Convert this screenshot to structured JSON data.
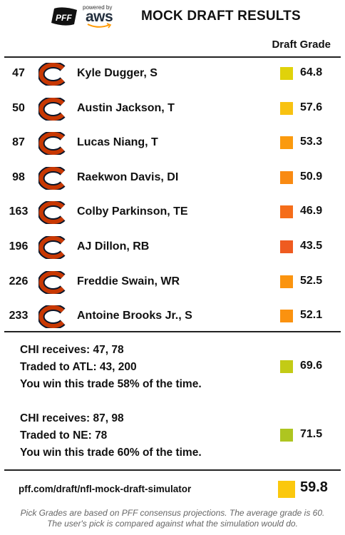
{
  "header": {
    "pff_logo_text": "PFF",
    "aws_powered_by": "powered by",
    "aws_text": "aws",
    "title": "MOCK DRAFT RESULTS"
  },
  "column_header": "Draft Grade",
  "team_logo_icon": "chicago-bears-c-icon",
  "colors": {
    "logo_navy": "#0b162a",
    "logo_orange": "#c83803"
  },
  "picks": [
    {
      "pick": "47",
      "player": "Kyle Dugger, S",
      "grade": "64.8",
      "color": "#e0d20a"
    },
    {
      "pick": "50",
      "player": "Austin Jackson, T",
      "grade": "57.6",
      "color": "#f8c211"
    },
    {
      "pick": "87",
      "player": "Lucas Niang, T",
      "grade": "53.3",
      "color": "#fb9a0e"
    },
    {
      "pick": "98",
      "player": "Raekwon Davis, DI",
      "grade": "50.9",
      "color": "#f98a12"
    },
    {
      "pick": "163",
      "player": "Colby Parkinson, TE",
      "grade": "46.9",
      "color": "#f56d1a"
    },
    {
      "pick": "196",
      "player": "AJ Dillon, RB",
      "grade": "43.5",
      "color": "#ef5b20"
    },
    {
      "pick": "226",
      "player": "Freddie Swain, WR",
      "grade": "52.5",
      "color": "#fb940f"
    },
    {
      "pick": "233",
      "player": "Antoine Brooks Jr., S",
      "grade": "52.1",
      "color": "#fb920f"
    }
  ],
  "trades": [
    {
      "receives": "CHI receives: 47, 78",
      "traded": "Traded to ATL: 43, 200",
      "win": "You win this trade 58% of the time.",
      "grade": "69.6",
      "color": "#c3cb15"
    },
    {
      "receives": "CHI receives: 87, 98",
      "traded": "Traded to NE: 78",
      "win": "You win this trade 60% of the time.",
      "grade": "71.5",
      "color": "#aec520"
    }
  ],
  "footer": {
    "link": "pff.com/draft/nfl-mock-draft-simulator",
    "overall_grade": "59.8",
    "overall_color": "#fbc80d",
    "note_line1": "Pick Grades are based on PFF consensus projections. The average grade is 60.",
    "note_line2": "The user's pick is compared against what the simulation would do."
  }
}
